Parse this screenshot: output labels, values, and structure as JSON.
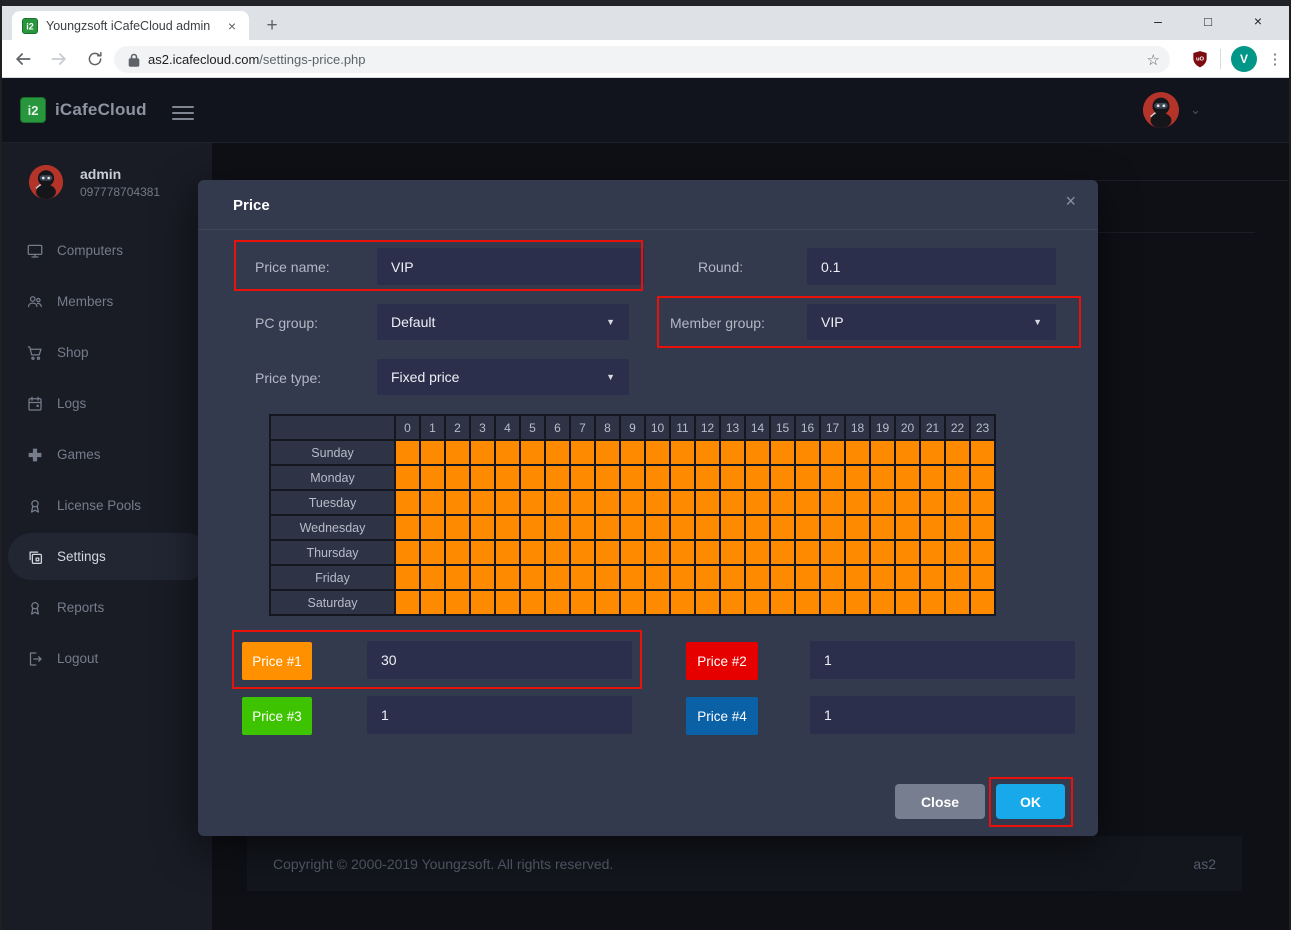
{
  "browser": {
    "tab_title": "Youngzsoft iCafeCloud admin",
    "url_domain": "as2.icafecloud.com",
    "url_path": "/settings-price.php",
    "profile_initial": "V",
    "new_tab_glyph": "+",
    "close_tab_glyph": "×",
    "window_controls": {
      "minimize": "–",
      "maximize": "□",
      "close": "×"
    },
    "icons": [
      "back-icon",
      "forward-icon",
      "reload-icon",
      "lock-icon",
      "star-icon",
      "ublock-shield-icon",
      "kebab-menu-icon"
    ]
  },
  "topbar": {
    "brand": "iCafeCloud",
    "logo_glyph": "i2",
    "icons": [
      "hamburger-icon",
      "user-avatar-ninja",
      "chevron-down-icon"
    ]
  },
  "sidebar": {
    "user": {
      "name": "admin",
      "phone": "097778704381"
    },
    "items": [
      {
        "label": "Computers",
        "icon": "monitor-icon",
        "active": false
      },
      {
        "label": "Members",
        "icon": "people-icon",
        "active": false
      },
      {
        "label": "Shop",
        "icon": "cart-icon",
        "active": false
      },
      {
        "label": "Logs",
        "icon": "calendar-icon",
        "active": false
      },
      {
        "label": "Games",
        "icon": "gamepad-cross-icon",
        "active": false
      },
      {
        "label": "License Pools",
        "icon": "medal-icon",
        "active": false
      },
      {
        "label": "Settings",
        "icon": "layers-icon",
        "active": true
      },
      {
        "label": "Reports",
        "icon": "medal-icon",
        "active": false
      },
      {
        "label": "Logout",
        "icon": "logout-icon",
        "active": false
      }
    ]
  },
  "modal": {
    "title": "Price",
    "close_glyph": "×",
    "fields": {
      "price_name": {
        "label": "Price name:",
        "value": "VIP"
      },
      "round": {
        "label": "Round:",
        "value": "0.1"
      },
      "pc_group": {
        "label": "PC group:",
        "value": "Default"
      },
      "member_group": {
        "label": "Member group:",
        "value": "VIP"
      },
      "price_type": {
        "label": "Price type:",
        "value": "Fixed price"
      }
    },
    "grid": {
      "hours": [
        "0",
        "1",
        "2",
        "3",
        "4",
        "5",
        "6",
        "7",
        "8",
        "9",
        "10",
        "11",
        "12",
        "13",
        "14",
        "15",
        "16",
        "17",
        "18",
        "19",
        "20",
        "21",
        "22",
        "23"
      ],
      "days": [
        "Sunday",
        "Monday",
        "Tuesday",
        "Wednesday",
        "Thursday",
        "Friday",
        "Saturday"
      ],
      "cell_color": "#fe8a00",
      "all_cells_assigned_to": "Price #1"
    },
    "prices": [
      {
        "label": "Price #1",
        "value": "30",
        "color": "#ff9000"
      },
      {
        "label": "Price #2",
        "value": "1",
        "color": "#e60000"
      },
      {
        "label": "Price #3",
        "value": "1",
        "color": "#3ec300"
      },
      {
        "label": "Price #4",
        "value": "1",
        "color": "#0b61a6"
      }
    ],
    "buttons": {
      "close": "Close",
      "ok": "OK"
    },
    "annotation_color": "#e8120b",
    "annotated_elements": [
      "price-name-row",
      "member-group-row",
      "price-1-row",
      "ok-button"
    ]
  },
  "footer": {
    "copyright": "Copyright © 2000-2019 Youngzsoft. All rights reserved.",
    "server": "as2"
  },
  "colors": {
    "modal_bg": "#343a4d",
    "input_bg": "#2b2f4b",
    "sidebar_bg": "#191b25",
    "navbar_bg": "#12141d",
    "page_bg": "#0e1016",
    "grid_header_bg": "#2e3446",
    "ok_button": "#18a9ea",
    "close_button": "#767e8f",
    "accent_red_avatar": "#b5342a",
    "brand_green": "#27963c",
    "profile_teal": "#009688"
  }
}
